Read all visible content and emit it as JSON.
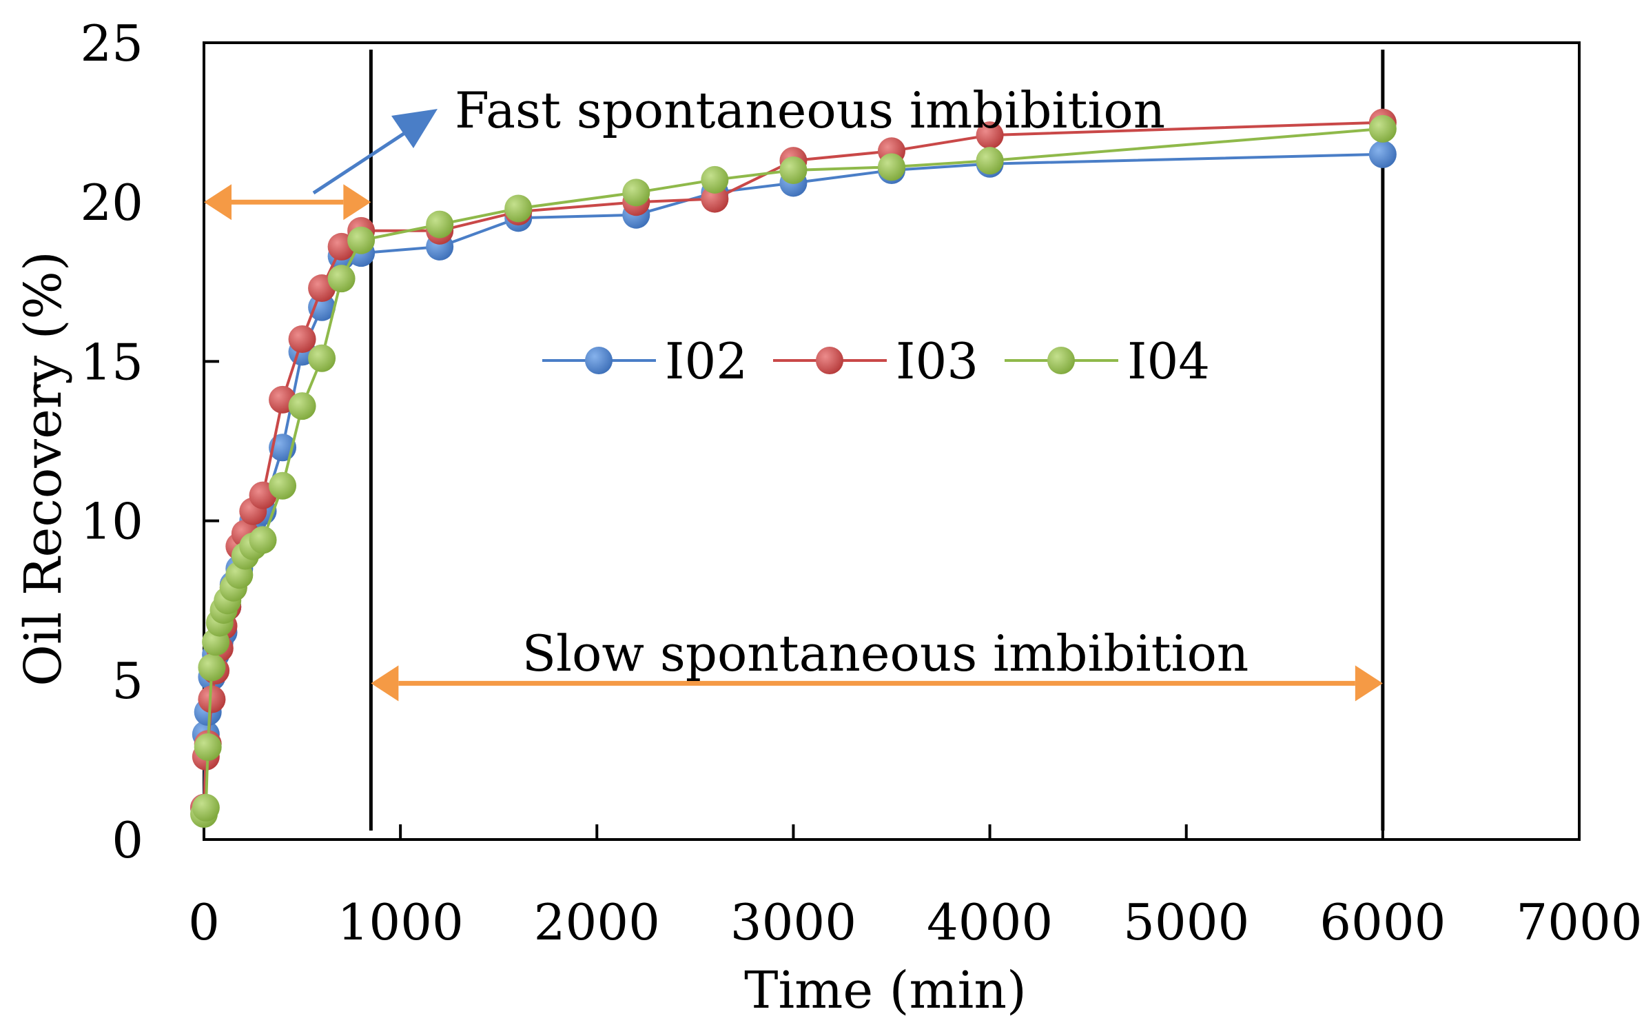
{
  "chart_data": {
    "type": "line",
    "title": "",
    "xlabel": "Time (min)",
    "ylabel": "Oil Recovery (%)",
    "xlim": [
      0,
      7000
    ],
    "ylim": [
      0,
      25
    ],
    "x_ticks": [
      "0",
      "1000",
      "2000",
      "3000",
      "4000",
      "5000",
      "6000",
      "7000"
    ],
    "y_ticks": [
      "0",
      "5",
      "10",
      "15",
      "20",
      "25"
    ],
    "grid": false,
    "legend_position": "center",
    "series": [
      {
        "name": "I02",
        "color": "#4a7ec7",
        "x": [
          0,
          10,
          20,
          40,
          60,
          80,
          100,
          120,
          150,
          180,
          210,
          250,
          300,
          400,
          500,
          600,
          700,
          800,
          1200,
          1600,
          2200,
          2600,
          3000,
          3500,
          4000,
          6000
        ],
        "values": [
          1.0,
          3.3,
          4.0,
          5.1,
          5.8,
          6.2,
          6.5,
          7.3,
          8.0,
          8.5,
          9.5,
          10.0,
          10.3,
          12.3,
          15.3,
          16.7,
          18.3,
          18.4,
          18.6,
          19.5,
          19.6,
          20.3,
          20.6,
          21.0,
          21.2,
          21.5
        ]
      },
      {
        "name": "I03",
        "color": "#c94848",
        "x": [
          0,
          10,
          20,
          40,
          60,
          80,
          100,
          120,
          150,
          180,
          210,
          250,
          300,
          400,
          500,
          600,
          700,
          800,
          1200,
          1600,
          2200,
          2600,
          3000,
          3500,
          4000,
          6000
        ],
        "values": [
          1.0,
          2.6,
          3.0,
          4.4,
          5.3,
          6.0,
          6.7,
          7.3,
          7.9,
          9.2,
          9.6,
          10.3,
          10.8,
          13.8,
          15.7,
          17.3,
          18.6,
          19.1,
          19.1,
          19.7,
          20.0,
          20.1,
          21.3,
          21.6,
          22.1,
          22.5
        ]
      },
      {
        "name": "I04",
        "color": "#8fb94a",
        "x": [
          0,
          10,
          20,
          40,
          60,
          80,
          100,
          120,
          150,
          180,
          210,
          250,
          300,
          400,
          500,
          600,
          700,
          800,
          1200,
          1600,
          2200,
          2600,
          3000,
          3500,
          4000,
          6000
        ],
        "values": [
          0.8,
          1.0,
          2.9,
          5.4,
          6.2,
          6.8,
          7.2,
          7.5,
          7.9,
          8.3,
          8.9,
          9.2,
          9.4,
          11.1,
          13.6,
          15.1,
          17.6,
          18.8,
          19.3,
          19.8,
          20.3,
          20.7,
          21.0,
          21.1,
          21.3,
          22.3
        ]
      }
    ],
    "annotations": {
      "fast": "Fast spontaneous imbibition",
      "slow": "Slow spontaneous imbibition"
    },
    "reference_lines_x": [
      850,
      6000
    ],
    "annotation_colors": {
      "range_arrow": "#f59a45",
      "pointer_arrow": "#4a7ec7"
    }
  }
}
